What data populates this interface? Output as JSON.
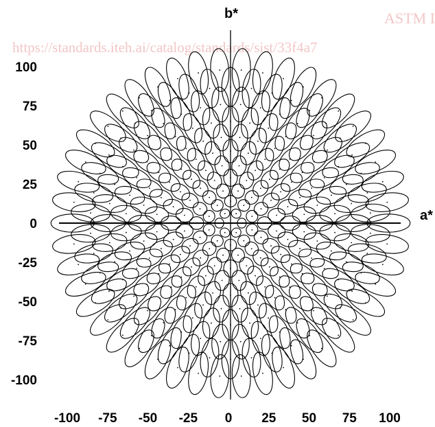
{
  "watermark": {
    "header": "ASTM I",
    "url": "https://standards.iteh.ai/catalog/standards/sist/33f4a7"
  },
  "chart_data": {
    "type": "scatter",
    "xlabel": "a*",
    "ylabel": "b*",
    "xlim": [
      -110,
      110
    ],
    "ylim": [
      -110,
      110
    ],
    "x_ticks": [
      "-100",
      "-75",
      "-50",
      "-25",
      "0",
      "25",
      "50",
      "75",
      "100"
    ],
    "y_ticks": [
      "100",
      "75",
      "50",
      "25",
      "0",
      "-25",
      "-50",
      "-75",
      "-100"
    ],
    "grid": false,
    "legend": "none",
    "description_of_marks": "Concentric rings of tolerance ellipses in the a*b* plane; ellipse size grows with chroma, centered on a* = 0, b* = 0.",
    "rings": [
      {
        "radius": 7,
        "count": 6
      },
      {
        "radius": 14,
        "count": 10
      },
      {
        "radius": 21,
        "count": 14
      },
      {
        "radius": 29,
        "count": 18
      },
      {
        "radius": 37,
        "count": 22
      },
      {
        "radius": 46,
        "count": 26
      },
      {
        "radius": 55,
        "count": 30
      },
      {
        "radius": 65,
        "count": 34
      },
      {
        "radius": 76,
        "count": 38
      },
      {
        "radius": 87,
        "count": 42
      },
      {
        "radius": 98,
        "count": 46
      }
    ],
    "colors": {
      "ink": "#000000",
      "background": "#ffffff",
      "watermark": "#f3c6c6"
    }
  }
}
